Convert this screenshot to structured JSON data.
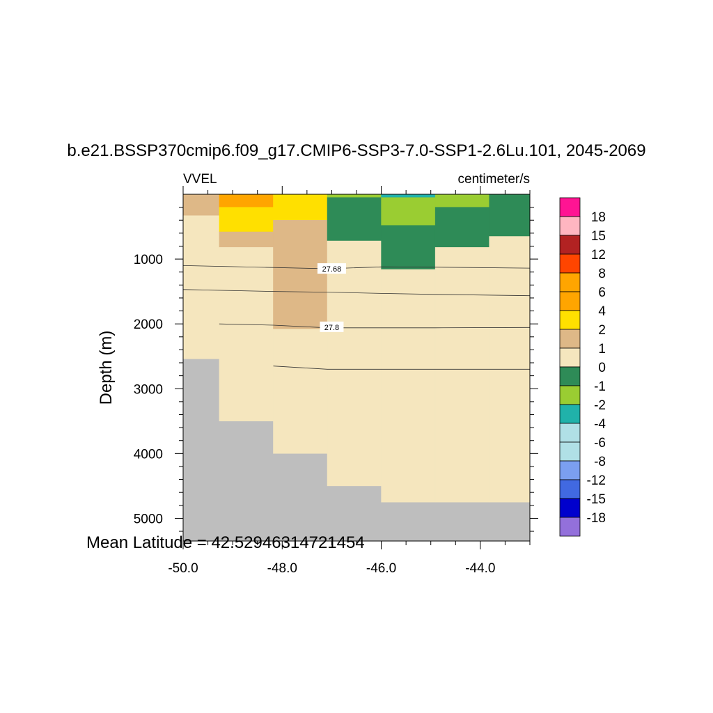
{
  "chart_data": {
    "type": "heatmap",
    "title": "b.e21.BSSP370cmip6.f09_g17.CMIP6-SSP3-7.0-SSP1-2.6Lu.101, 2045-2069",
    "left_label": "VVEL",
    "right_label": "centimeter/s",
    "ylabel": "Depth (m)",
    "xlabel": "",
    "footer": "Mean Latitude = 42.52946314721454",
    "xlim": [
      -50.0,
      -43.0
    ],
    "ylim": [
      5350,
      0
    ],
    "x_ticks": [
      -50.0,
      -48.0,
      -46.0,
      -44.0
    ],
    "x_tick_labels": [
      "-50.0",
      "-48.0",
      "-46.0",
      "-44.0"
    ],
    "y_ticks": [
      1000,
      2000,
      3000,
      4000,
      5000
    ],
    "y_tick_labels": [
      "1000",
      "2000",
      "3000",
      "4000",
      "5000"
    ],
    "colorbar": {
      "colors": [
        "#9370db",
        "#0000cd",
        "#4169e1",
        "#7b9ff0",
        "#b0e0e6",
        "#b0e0e6",
        "#20b2aa",
        "#9acd32",
        "#2e8b57",
        "#f5e6be",
        "#deb887",
        "#ffe000",
        "#ffa500",
        "#ffa500",
        "#ff4500",
        "#b22222",
        "#ffb6c1",
        "#ff1493"
      ],
      "labels": [
        "-18",
        "-15",
        "-12",
        "-8",
        "-6",
        "-4",
        "-2",
        "-1",
        "0",
        "1",
        "2",
        "4",
        "6",
        "8",
        "12",
        "15",
        "18"
      ]
    },
    "missing_color": "#bebebe",
    "cells": [
      {
        "x": [
          -50.0,
          -49.27
        ],
        "d": [
          0,
          330
        ],
        "c": "#deb887"
      },
      {
        "x": [
          -50.0,
          -49.27
        ],
        "d": [
          330,
          2540
        ],
        "c": "#f5e6be"
      },
      {
        "x": [
          -49.27,
          -48.18
        ],
        "d": [
          0,
          200
        ],
        "c": "#ffa500"
      },
      {
        "x": [
          -49.27,
          -48.18
        ],
        "d": [
          200,
          580
        ],
        "c": "#ffe000"
      },
      {
        "x": [
          -49.27,
          -48.18
        ],
        "d": [
          580,
          820
        ],
        "c": "#deb887"
      },
      {
        "x": [
          -49.27,
          -48.18
        ],
        "d": [
          820,
          3500
        ],
        "c": "#f5e6be"
      },
      {
        "x": [
          -48.18,
          -47.09
        ],
        "d": [
          0,
          400
        ],
        "c": "#ffe000"
      },
      {
        "x": [
          -48.18,
          -47.09
        ],
        "d": [
          400,
          2080
        ],
        "c": "#deb887"
      },
      {
        "x": [
          -48.18,
          -47.09
        ],
        "d": [
          2080,
          4000
        ],
        "c": "#f5e6be"
      },
      {
        "x": [
          -47.09,
          -46.0
        ],
        "d": [
          0,
          50
        ],
        "c": "#9acd32"
      },
      {
        "x": [
          -47.09,
          -46.0
        ],
        "d": [
          50,
          720
        ],
        "c": "#2e8b57"
      },
      {
        "x": [
          -47.09,
          -46.0
        ],
        "d": [
          720,
          4500
        ],
        "c": "#f5e6be"
      },
      {
        "x": [
          -46.0,
          -44.91
        ],
        "d": [
          0,
          50
        ],
        "c": "#20b2aa"
      },
      {
        "x": [
          -46.0,
          -44.91
        ],
        "d": [
          50,
          480
        ],
        "c": "#9acd32"
      },
      {
        "x": [
          -46.0,
          -44.91
        ],
        "d": [
          480,
          1160
        ],
        "c": "#2e8b57"
      },
      {
        "x": [
          -46.0,
          -44.91
        ],
        "d": [
          1160,
          4750
        ],
        "c": "#f5e6be"
      },
      {
        "x": [
          -44.91,
          -43.82
        ],
        "d": [
          0,
          200
        ],
        "c": "#9acd32"
      },
      {
        "x": [
          -44.91,
          -43.82
        ],
        "d": [
          200,
          820
        ],
        "c": "#2e8b57"
      },
      {
        "x": [
          -44.91,
          -43.82
        ],
        "d": [
          820,
          4750
        ],
        "c": "#f5e6be"
      },
      {
        "x": [
          -43.82,
          -43.0
        ],
        "d": [
          0,
          650
        ],
        "c": "#2e8b57"
      },
      {
        "x": [
          -43.82,
          -43.0
        ],
        "d": [
          650,
          4750
        ],
        "c": "#f5e6be"
      }
    ],
    "contours": [
      {
        "points": [
          [
            -50.0,
            1100
          ],
          [
            -48.18,
            1130
          ],
          [
            -47.09,
            1150
          ],
          [
            -46.0,
            1120
          ],
          [
            -44.91,
            1125
          ],
          [
            -43.0,
            1140
          ]
        ],
        "label": "27.68",
        "label_at": [
          -47.0,
          1150
        ]
      },
      {
        "points": [
          [
            -50.0,
            1470
          ],
          [
            -48.18,
            1500
          ],
          [
            -47.09,
            1510
          ],
          [
            -46.0,
            1530
          ],
          [
            -44.91,
            1545
          ],
          [
            -43.0,
            1565
          ]
        ],
        "label": "",
        "label_at": null
      },
      {
        "points": [
          [
            -49.27,
            2000
          ],
          [
            -48.18,
            2020
          ],
          [
            -47.09,
            2060
          ],
          [
            -46.0,
            2060
          ],
          [
            -44.91,
            2060
          ],
          [
            -43.0,
            2055
          ]
        ],
        "label": "27.8",
        "label_at": [
          -47.0,
          2050
        ]
      },
      {
        "points": [
          [
            -48.18,
            2650
          ],
          [
            -47.09,
            2700
          ],
          [
            -46.0,
            2700
          ],
          [
            -44.91,
            2700
          ],
          [
            -43.0,
            2700
          ]
        ],
        "label": "",
        "label_at": null
      }
    ]
  }
}
